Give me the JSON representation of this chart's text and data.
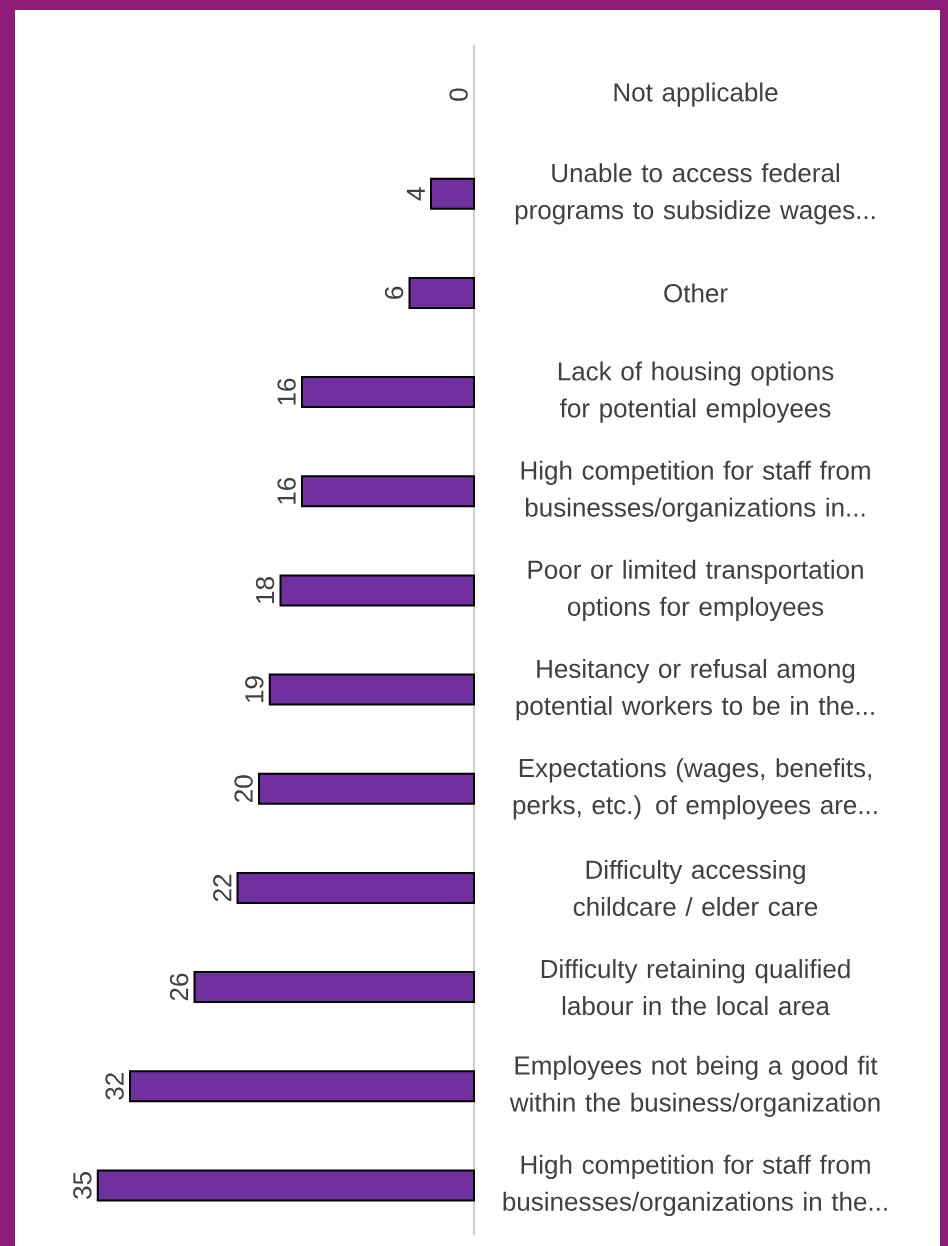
{
  "chart_data": {
    "type": "bar",
    "orientation": "horizontal",
    "color": "#7030a0",
    "data_labels": true,
    "categories": [
      "Not applicable",
      "Unable to access federal programs to subsidize wages...",
      "Other",
      "Lack of housing options for potential employees",
      "High competition for staff from businesses/organizations in...",
      "Poor or limited transportation options for employees",
      "Hesitancy or refusal among potential workers to be in the...",
      "Expectations (wages, benefits, perks, etc.) of employees are...",
      "Difficulty accessing childcare / elder care",
      "Difficulty retaining qualified labour in the local area",
      "Employees not being a good fit within the business/organization",
      "High competition for staff from businesses/organizations in the..."
    ],
    "values": [
      0,
      4,
      6,
      16,
      16,
      18,
      19,
      20,
      22,
      26,
      32,
      35
    ]
  }
}
